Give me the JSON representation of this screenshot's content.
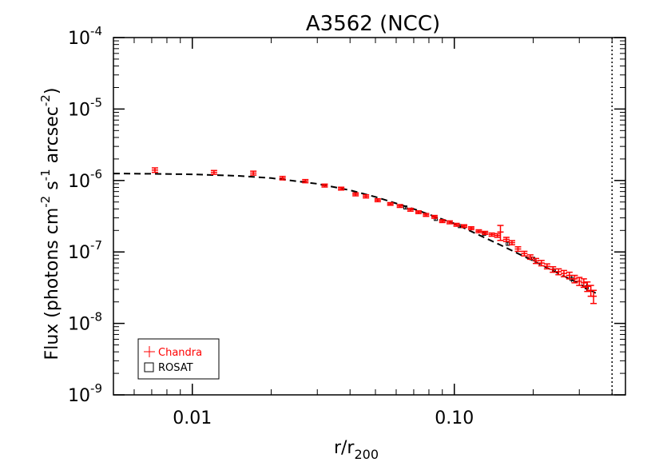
{
  "chart_data": {
    "type": "scatter",
    "title": "A3562 (NCC)",
    "xlabel_main": "r/r",
    "xlabel_sub": "200",
    "ylabel_parts": [
      "Flux (photons cm",
      "-2",
      " s",
      "-1",
      " arcsec",
      "-2",
      ")"
    ],
    "x_scale": "log",
    "y_scale": "log",
    "xlim": [
      0.005,
      0.45
    ],
    "ylim": [
      1e-09,
      0.0001
    ],
    "x_ticks": [
      {
        "value": 0.01,
        "label": "0.01"
      },
      {
        "value": 0.1,
        "label": "0.10"
      }
    ],
    "y_ticks": [
      {
        "value": 1e-09,
        "base": "10",
        "exp": "-9"
      },
      {
        "value": 1e-08,
        "base": "10",
        "exp": "-8"
      },
      {
        "value": 1e-07,
        "base": "10",
        "exp": "-7"
      },
      {
        "value": 1e-06,
        "base": "10",
        "exp": "-6"
      },
      {
        "value": 1e-05,
        "base": "10",
        "exp": "-5"
      },
      {
        "value": 0.0001,
        "base": "10",
        "exp": "-4"
      }
    ],
    "vline_x": 0.4,
    "legend": {
      "position": "bottom-left",
      "entries": [
        {
          "label": "Chandra",
          "marker": "plus",
          "color": "#ff0000"
        },
        {
          "label": "ROSAT",
          "marker": "square",
          "color": "#000000"
        }
      ]
    },
    "model": {
      "style": "dashed",
      "color": "#000000",
      "x": [
        0.005,
        0.007,
        0.01,
        0.015,
        0.02,
        0.03,
        0.04,
        0.05,
        0.07,
        0.1,
        0.15,
        0.2,
        0.25,
        0.3,
        0.35
      ],
      "y": [
        1.25e-06,
        1.24e-06,
        1.22e-06,
        1.16e-06,
        1.08e-06,
        9e-07,
        7.3e-07,
        5.9e-07,
        4e-07,
        2.5e-07,
        1.25e-07,
        7.5e-08,
        5e-08,
        3.6e-08,
        2.6e-08
      ]
    },
    "series": [
      {
        "name": "Chandra",
        "color": "#ff0000",
        "marker": "plus",
        "x": [
          0.0072,
          0.0121,
          0.0171,
          0.0221,
          0.027,
          0.032,
          0.037,
          0.042,
          0.046,
          0.051,
          0.057,
          0.062,
          0.068,
          0.073,
          0.078,
          0.084,
          0.09,
          0.096,
          0.102,
          0.109,
          0.116,
          0.124,
          0.131,
          0.139,
          0.146,
          0.15,
          0.158,
          0.166,
          0.175,
          0.185,
          0.195,
          0.205,
          0.215,
          0.226,
          0.238,
          0.25,
          0.262,
          0.275,
          0.288,
          0.3,
          0.312,
          0.322,
          0.332,
          0.34
        ],
        "y": [
          1.4e-06,
          1.3e-06,
          1.27e-06,
          1.08e-06,
          9.8e-07,
          8.5e-07,
          7.7e-07,
          6.4e-07,
          6e-07,
          5.3e-07,
          4.7e-07,
          4.4e-07,
          3.9e-07,
          3.6e-07,
          3.3e-07,
          3.1e-07,
          2.7e-07,
          2.6e-07,
          2.4e-07,
          2.3e-07,
          2.15e-07,
          1.95e-07,
          1.85e-07,
          1.75e-07,
          1.7e-07,
          1.9e-07,
          1.5e-07,
          1.35e-07,
          1.1e-07,
          9.5e-08,
          8.5e-08,
          7.5e-08,
          7e-08,
          6.3e-08,
          5.7e-08,
          5.3e-08,
          5e-08,
          4.7e-08,
          4.2e-08,
          3.9e-08,
          3.7e-08,
          3.3e-08,
          2.9e-08,
          2.4e-08
        ],
        "yerr": [
          1e-07,
          8e-08,
          8e-08,
          6e-08,
          5e-08,
          4e-08,
          3.5e-08,
          3e-08,
          3e-08,
          2.5e-08,
          2e-08,
          2e-08,
          1.8e-08,
          1.6e-08,
          1.5e-08,
          1.4e-08,
          1.2e-08,
          1.2e-08,
          1.1e-08,
          1e-08,
          1e-08,
          9e-09,
          9e-09,
          9e-09,
          1e-08,
          4.5e-08,
          1e-08,
          9e-09,
          8e-09,
          7e-09,
          6e-09,
          6e-09,
          6e-09,
          5e-09,
          5e-09,
          5e-09,
          5e-09,
          5e-09,
          5e-09,
          5e-09,
          5e-09,
          5e-09,
          5e-09,
          5e-09
        ]
      },
      {
        "name": "ROSAT",
        "color": "#000000",
        "marker": "square",
        "x": [
          0.065,
          0.085,
          0.105,
          0.13,
          0.16,
          0.2,
          0.24,
          0.28,
          0.32
        ],
        "y": [
          4.2e-07,
          2.9e-07,
          2.3e-07,
          1.8e-07,
          1.3e-07,
          8e-08,
          5.5e-08,
          4.2e-08,
          3.2e-08
        ],
        "yerr": [
          2e-08,
          1.2e-08,
          1e-08,
          8e-09,
          7e-09,
          5e-09,
          4e-09,
          4e-09,
          4e-09
        ]
      }
    ]
  }
}
